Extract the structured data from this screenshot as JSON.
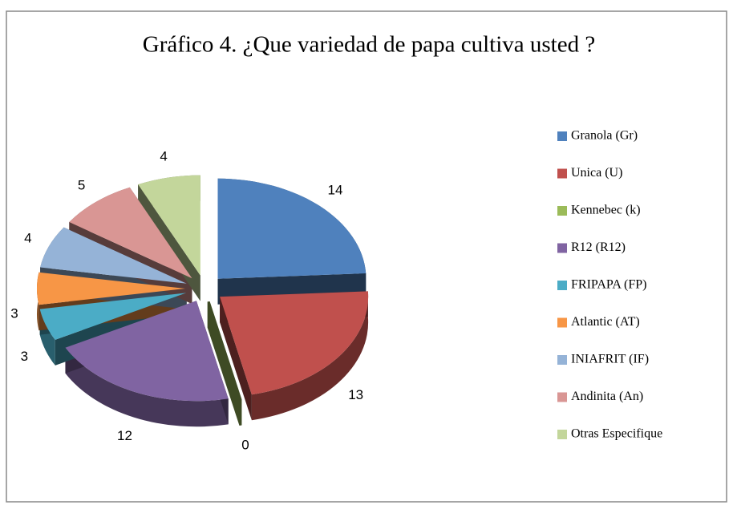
{
  "chart_data": {
    "type": "pie",
    "title": "Gráfico 4. ¿Que variedad de papa cultiva usted ?",
    "categories": [
      "Granola (Gr)",
      "Unica (U)",
      "Kennebec (k)",
      "R12 (R12)",
      "FRIPAPA (FP)",
      "Atlantic (AT)",
      "INIAFRIT (IF)",
      "Andinita (An)",
      "Otras Especifique"
    ],
    "values": [
      14,
      13,
      0,
      12,
      3,
      3,
      4,
      5,
      4
    ],
    "colors": [
      "#4f81bd",
      "#c0504d",
      "#9bbb59",
      "#8064a2",
      "#4bacc6",
      "#f79646",
      "#95b3d7",
      "#d99694",
      "#c3d69b"
    ],
    "legend": "right"
  }
}
